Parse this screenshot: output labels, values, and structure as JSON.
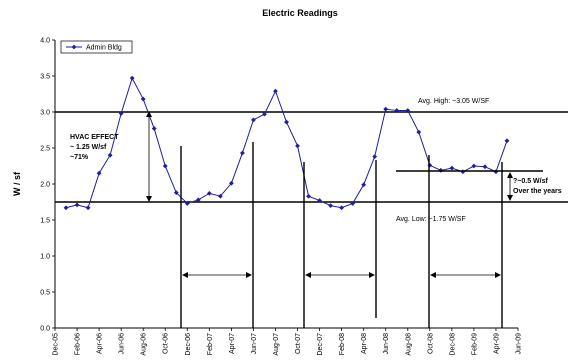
{
  "chart_data": {
    "type": "line",
    "title": "Electric Readings",
    "xlabel": "",
    "ylabel": "W / sf",
    "ylim": [
      0,
      4.0
    ],
    "yticks": [
      "0.0",
      "0.5",
      "1.0",
      "1.5",
      "2.0",
      "2.5",
      "3.0",
      "3.5",
      "4.0"
    ],
    "x_start": "2005-12",
    "x_end": "2009-06",
    "xtick_labels": [
      "Dec-05",
      "Feb-06",
      "Apr-06",
      "Jun-06",
      "Aug-06",
      "Oct-06",
      "Dec-06",
      "Feb-07",
      "Apr-07",
      "Jun-07",
      "Aug-07",
      "Oct-07",
      "Dec-07",
      "Feb-08",
      "Apr-08",
      "Jun-08",
      "Aug-08",
      "Oct-08",
      "Dec-08",
      "Feb-09",
      "Apr-09",
      "Jun-09"
    ],
    "legend": {
      "position": "top-left",
      "entries": [
        "Admin Bldg"
      ]
    },
    "grid": false,
    "colors": {
      "series": "#1f1f9a",
      "reference": "#000000"
    },
    "series": [
      {
        "name": "Admin Bldg",
        "x": [
          "2006-01",
          "2006-02",
          "2006-03",
          "2006-04",
          "2006-05",
          "2006-06",
          "2006-07",
          "2006-08",
          "2006-09",
          "2006-10",
          "2006-11",
          "2006-12",
          "2007-01",
          "2007-02",
          "2007-03",
          "2007-04",
          "2007-05",
          "2007-06",
          "2007-07",
          "2007-08",
          "2007-09",
          "2007-10",
          "2007-11",
          "2007-12",
          "2008-01",
          "2008-02",
          "2008-03",
          "2008-04",
          "2008-05",
          "2008-06",
          "2008-07",
          "2008-08",
          "2008-09",
          "2008-10",
          "2008-11",
          "2008-12",
          "2009-01",
          "2009-02",
          "2009-03",
          "2009-04",
          "2009-05"
        ],
        "y": [
          1.67,
          1.71,
          1.67,
          2.15,
          2.4,
          2.98,
          3.47,
          3.18,
          2.77,
          2.25,
          1.88,
          1.73,
          1.78,
          1.87,
          1.83,
          2.01,
          2.43,
          2.89,
          2.97,
          3.29,
          2.86,
          2.53,
          1.83,
          1.77,
          1.7,
          1.67,
          1.73,
          1.99,
          2.38,
          3.04,
          3.02,
          3.02,
          2.72,
          2.26,
          2.19,
          2.22,
          2.17,
          2.25,
          2.24,
          2.17,
          2.6
        ]
      }
    ],
    "reference_lines": [
      {
        "y": 3.0,
        "label": "Avg. High: ~3.05 W/SF"
      },
      {
        "y": 1.75,
        "label": "Avg. Low: ~1.75 W/SF"
      }
    ],
    "annotations": {
      "hvac_line1": "HVAC EFFECT",
      "hvac_line2": "~ 1.25 W/sf",
      "hvac_line3": "~71%",
      "right_line1": "?~0.5 W/sf",
      "right_line2": "Over the years"
    }
  }
}
